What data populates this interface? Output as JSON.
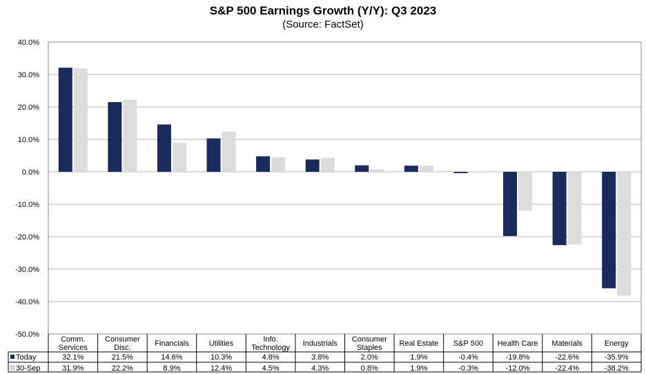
{
  "chart_data": {
    "type": "bar",
    "title": "S&P 500 Earnings Growth (Y/Y): Q3 2023",
    "subtitle": "(Source: FactSet)",
    "categories": [
      "Comm. Services",
      "Consumer Disc.",
      "Financials",
      "Utilities",
      "Info. Technology",
      "Industrials",
      "Consumer Staples",
      "Real Estate",
      "S&P 500",
      "Health Care",
      "Materials",
      "Energy"
    ],
    "series": [
      {
        "name": "Today",
        "color": "#1b2a5c",
        "values": [
          32.1,
          21.5,
          14.6,
          10.3,
          4.8,
          3.8,
          2.0,
          1.9,
          -0.4,
          -19.8,
          -22.6,
          -35.9
        ],
        "labels": [
          "32.1%",
          "21.5%",
          "14.6%",
          "10.3%",
          "4.8%",
          "3.8%",
          "2.0%",
          "1.9%",
          "-0.4%",
          "-19.8%",
          "-22.6%",
          "-35.9%"
        ]
      },
      {
        "name": "30-Sep",
        "color": "#dcdcdc",
        "values": [
          31.9,
          22.2,
          8.9,
          12.4,
          4.5,
          4.3,
          0.8,
          1.9,
          -0.3,
          -12.0,
          -22.4,
          -38.2
        ],
        "labels": [
          "31.9%",
          "22.2%",
          "8.9%",
          "12.4%",
          "4.5%",
          "4.3%",
          "0.8%",
          "1.9%",
          "-0.3%",
          "-12.0%",
          "-22.4%",
          "-38.2%"
        ]
      }
    ],
    "yticks": [
      "40.0%",
      "30.0%",
      "20.0%",
      "10.0%",
      "0.0%",
      "-10.0%",
      "-20.0%",
      "-30.0%",
      "-40.0%",
      "-50.0%"
    ],
    "ylim": [
      -50,
      40
    ],
    "grid": true,
    "legend": "data-table-below"
  }
}
